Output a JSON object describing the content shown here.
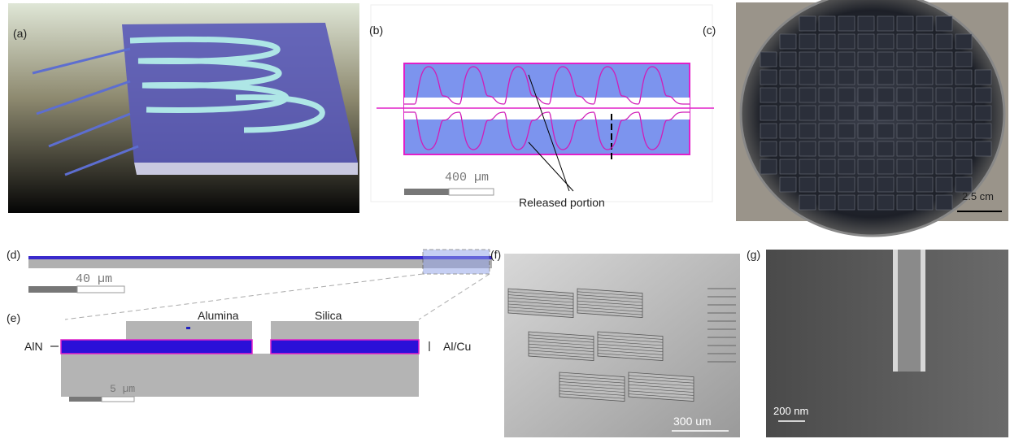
{
  "panels": {
    "a": {
      "label": "(a)"
    },
    "b": {
      "label": "(b)",
      "scale_bar": "400 µm",
      "annotation": "Released portion"
    },
    "c": {
      "label": "(c)",
      "scale_bar": "2.5 cm"
    },
    "d": {
      "label": "(d)",
      "scale_bar": "40 µm"
    },
    "e": {
      "label": "(e)",
      "scale_bar": "5 µm",
      "labels": {
        "alumina": "Alumina",
        "silica": "Silica",
        "aln": "AlN",
        "alcu": "Al/Cu"
      }
    },
    "f": {
      "label": "(f)",
      "scale_bar": "300 um"
    },
    "g": {
      "label": "(g)",
      "scale_bar": "200 nm"
    }
  }
}
